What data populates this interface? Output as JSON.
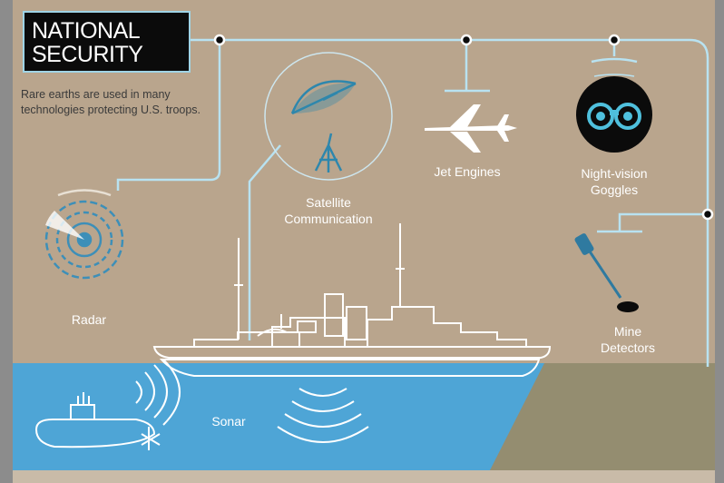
{
  "title": {
    "line1": "NATIONAL",
    "line2": "SECURITY"
  },
  "intro": "Rare earths are used in many technologies protecting U.S. troops.",
  "labels": {
    "satellite_line1": "Satellite",
    "satellite_line2": "Communication",
    "jet": "Jet Engines",
    "nightvision_line1": "Night-vision",
    "nightvision_line2": "Goggles",
    "radar": "Radar",
    "mine_line1": "Mine",
    "mine_line2": "Detectors",
    "sonar": "Sonar"
  },
  "colors": {
    "land": "#b9a58d",
    "water": "#4ea5d6",
    "seabed": "#948d70",
    "lines": "#b8e2f1",
    "title_bg": "#0b0b0b",
    "title_border": "#9fd4e6",
    "text_dark": "#3a3a3a",
    "text_light": "#ffffff"
  },
  "icons": [
    "satellite-dish-icon",
    "jet-icon",
    "binoculars-icon",
    "radar-icon",
    "mine-detector-icon",
    "submarine-icon",
    "ship-icon"
  ]
}
